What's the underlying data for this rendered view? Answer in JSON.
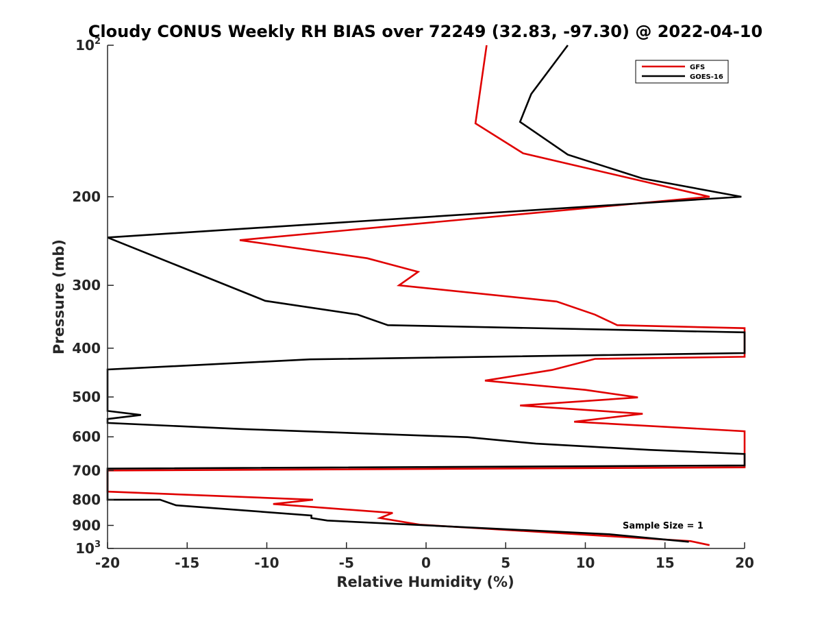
{
  "chart_data": {
    "type": "line",
    "title": "Cloudy CONUS Weekly RH BIAS over 72249 (32.83, -97.30) @ 2022-04-10",
    "xlabel": "Relative Humidity (%)",
    "ylabel": "Pressure (mb)",
    "xlim": [
      -20,
      20
    ],
    "ylim": [
      100,
      1000
    ],
    "y_scale": "log",
    "y_reversed": true,
    "grid": false,
    "legend_position": "top-right",
    "x_ticks": [
      "-20",
      "-15",
      "-10",
      "-5",
      "0",
      "5",
      "10",
      "15",
      "20"
    ],
    "y_ticks": [
      {
        "value": 100,
        "base": "10",
        "exp": "2"
      },
      {
        "value": 200,
        "label": "200"
      },
      {
        "value": 300,
        "label": "300"
      },
      {
        "value": 400,
        "label": "400"
      },
      {
        "value": 500,
        "label": "500"
      },
      {
        "value": 600,
        "label": "600"
      },
      {
        "value": 700,
        "label": "700"
      },
      {
        "value": 800,
        "label": "800"
      },
      {
        "value": 900,
        "label": "900"
      },
      {
        "value": 1000,
        "base": "10",
        "exp": "3"
      }
    ],
    "annotation": "Sample Size = 1",
    "series": [
      {
        "name": "GFS",
        "color": "#e00000",
        "points": [
          [
            3.8,
            100
          ],
          [
            3.1,
            143
          ],
          [
            6.1,
            164
          ],
          [
            17.8,
            200
          ],
          [
            -11.7,
            244
          ],
          [
            -3.7,
            265
          ],
          [
            -0.5,
            282
          ],
          [
            -1.7,
            300
          ],
          [
            8.2,
            323
          ],
          [
            10.6,
            343
          ],
          [
            12.0,
            360
          ],
          [
            20,
            365
          ],
          [
            20,
            416
          ],
          [
            10.6,
            420
          ],
          [
            7.9,
            442
          ],
          [
            3.7,
            464
          ],
          [
            10.0,
            484
          ],
          [
            13.3,
            501
          ],
          [
            5.9,
            520
          ],
          [
            13.6,
            540
          ],
          [
            9.3,
            560
          ],
          [
            20,
            585
          ],
          [
            20,
            690
          ],
          [
            -20,
            700
          ],
          [
            -20,
            771
          ],
          [
            -7.1,
            800
          ],
          [
            -9.6,
            816
          ],
          [
            -2.1,
            850
          ],
          [
            -2.9,
            870
          ],
          [
            -0.4,
            897
          ],
          [
            16.6,
            967
          ],
          [
            17.8,
            985
          ]
        ]
      },
      {
        "name": "GOES-16",
        "color": "#000000",
        "points": [
          [
            8.9,
            100
          ],
          [
            6.6,
            125
          ],
          [
            5.9,
            142
          ],
          [
            8.9,
            165
          ],
          [
            13.6,
            184
          ],
          [
            19.8,
            200
          ],
          [
            -20,
            241
          ],
          [
            -10.1,
            322
          ],
          [
            -4.3,
            343
          ],
          [
            -2.4,
            360
          ],
          [
            20,
            372
          ],
          [
            20,
            409
          ],
          [
            -7.3,
            421
          ],
          [
            -20,
            441
          ],
          [
            -20,
            533
          ],
          [
            -17.9,
            543
          ],
          [
            -20,
            553
          ],
          [
            -20,
            563
          ],
          [
            -11.6,
            579
          ],
          [
            2.6,
            601
          ],
          [
            6.9,
            619
          ],
          [
            14.0,
            637
          ],
          [
            20,
            649
          ],
          [
            20,
            684
          ],
          [
            -20,
            694
          ],
          [
            -20,
            800
          ],
          [
            -16.7,
            800
          ],
          [
            -15.7,
            821
          ],
          [
            -7.2,
            860
          ],
          [
            -7.2,
            860
          ],
          [
            -7.2,
            870
          ],
          [
            -6.2,
            880
          ],
          [
            11.5,
            937
          ],
          [
            16.5,
            970
          ]
        ]
      }
    ]
  }
}
